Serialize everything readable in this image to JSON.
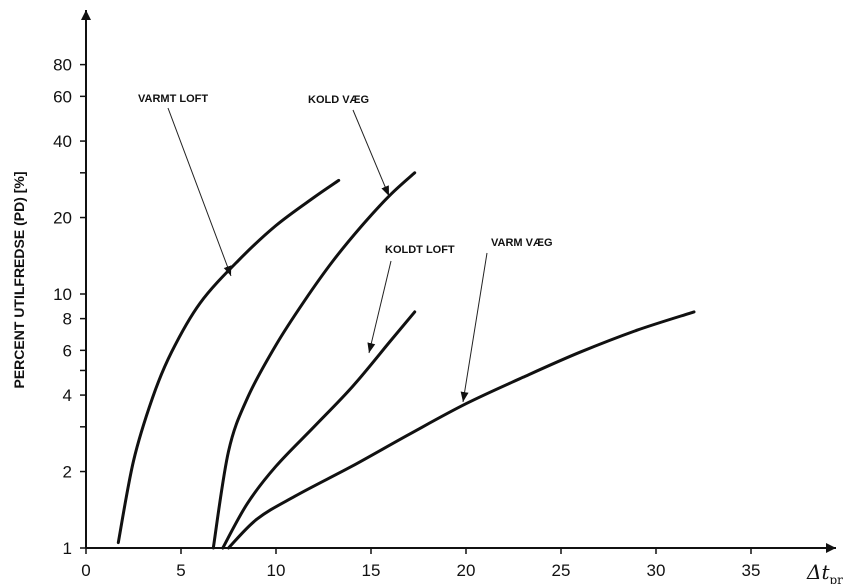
{
  "chart_data": {
    "type": "line",
    "xlabel": "Δt",
    "xlabel_subscript": "pr",
    "ylabel": "PERCENT UTILFREDSE (PD) [%]",
    "y_scale": "log",
    "xlim": [
      0,
      40
    ],
    "ylim": [
      1,
      100
    ],
    "x_ticks": [
      0,
      5,
      10,
      15,
      20,
      25,
      30,
      35
    ],
    "y_ticks": [
      1,
      2,
      4,
      6,
      8,
      10,
      20,
      40,
      60,
      80
    ],
    "y_minor_ticks": [
      3,
      5,
      30
    ],
    "grid": false,
    "series": [
      {
        "name": "VARMT LOFT",
        "points": [
          [
            1.7,
            1.05
          ],
          [
            2.5,
            2.2
          ],
          [
            3.5,
            3.9
          ],
          [
            4.5,
            5.9
          ],
          [
            6,
            9.2
          ],
          [
            8,
            13.5
          ],
          [
            10,
            18.6
          ],
          [
            12,
            24
          ],
          [
            13.3,
            28
          ]
        ]
      },
      {
        "name": "KOLD VÆG",
        "points": [
          [
            6.7,
            1.0
          ],
          [
            7.5,
            2.4
          ],
          [
            8.5,
            3.9
          ],
          [
            10,
            6.3
          ],
          [
            11.5,
            9.4
          ],
          [
            13,
            13.5
          ],
          [
            14.5,
            18.5
          ],
          [
            16,
            24.5
          ],
          [
            17.3,
            30
          ]
        ]
      },
      {
        "name": "KOLDT LOFT",
        "points": [
          [
            7.2,
            1.0
          ],
          [
            8.5,
            1.5
          ],
          [
            10,
            2.1
          ],
          [
            12,
            3.0
          ],
          [
            14,
            4.3
          ],
          [
            16,
            6.5
          ],
          [
            17.3,
            8.5
          ]
        ]
      },
      {
        "name": "VARM VÆG",
        "points": [
          [
            7.5,
            1.0
          ],
          [
            9,
            1.3
          ],
          [
            11,
            1.6
          ],
          [
            14,
            2.1
          ],
          [
            17,
            2.8
          ],
          [
            20,
            3.7
          ],
          [
            23,
            4.7
          ],
          [
            26,
            5.9
          ],
          [
            29,
            7.2
          ],
          [
            32,
            8.5
          ]
        ]
      }
    ]
  }
}
